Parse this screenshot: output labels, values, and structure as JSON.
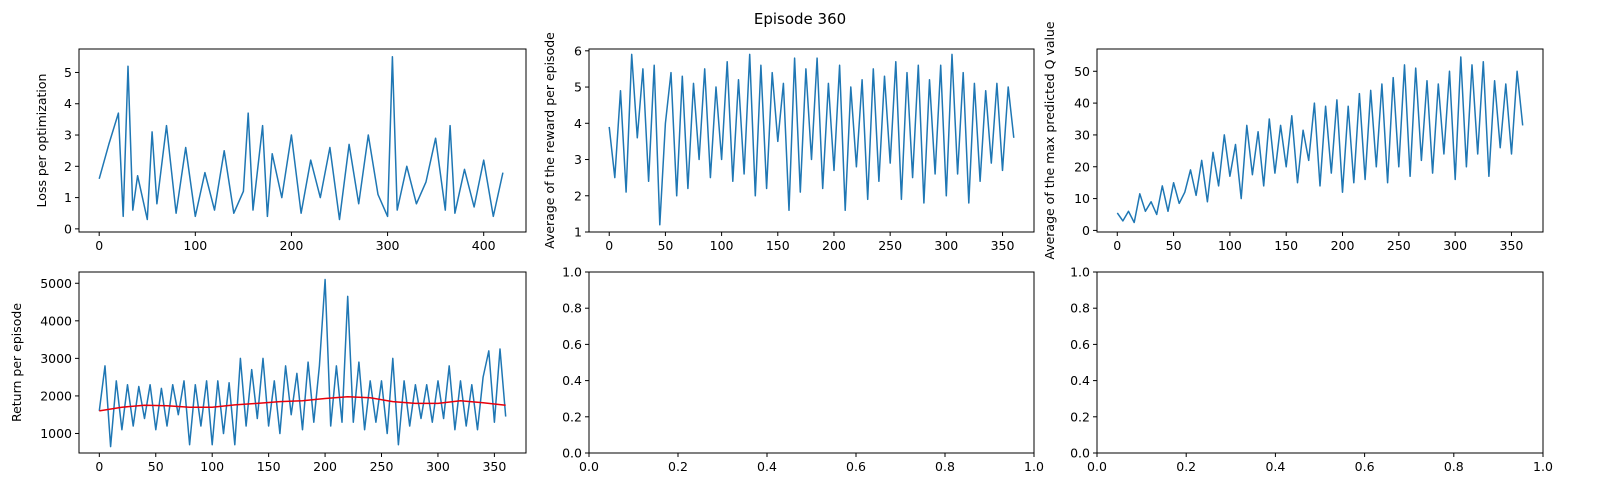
{
  "figure": {
    "title": "Episode 360"
  },
  "colors": {
    "line": "#1f77b4",
    "moving_average": "#e8000b",
    "axes": "#000000",
    "background": "#ffffff"
  },
  "chart_data": [
    {
      "type": "line",
      "title": "",
      "xlabel": "",
      "ylabel": "Loss per optimization",
      "xlim": [
        -21,
        444
      ],
      "ylim": [
        -0.1,
        5.75
      ],
      "xticks": [
        0,
        100,
        200,
        300,
        400
      ],
      "yticks": [
        0,
        1,
        2,
        3,
        4,
        5
      ],
      "grid": false,
      "series": [
        {
          "x": [
            0,
            10,
            20,
            25,
            30,
            35,
            40,
            50,
            55,
            60,
            70,
            80,
            90,
            100,
            110,
            120,
            130,
            140,
            150,
            155,
            160,
            170,
            175,
            180,
            190,
            200,
            210,
            220,
            230,
            240,
            250,
            260,
            270,
            280,
            290,
            300,
            305,
            310,
            320,
            330,
            340,
            350,
            360,
            365,
            370,
            380,
            390,
            400,
            410,
            420
          ],
          "y": [
            1.6,
            2.7,
            3.7,
            0.4,
            5.2,
            0.6,
            1.7,
            0.3,
            3.1,
            0.8,
            3.3,
            0.5,
            2.6,
            0.4,
            1.8,
            0.6,
            2.5,
            0.5,
            1.2,
            3.7,
            0.6,
            3.3,
            0.4,
            2.4,
            1.0,
            3.0,
            0.5,
            2.2,
            1.0,
            2.6,
            0.3,
            2.7,
            0.8,
            3.0,
            1.1,
            0.4,
            5.5,
            0.6,
            2.0,
            0.8,
            1.5,
            2.9,
            0.6,
            3.3,
            0.5,
            1.9,
            0.7,
            2.2,
            0.4,
            1.8
          ]
        }
      ]
    },
    {
      "type": "line",
      "title": "",
      "xlabel": "",
      "ylabel": "Average of the reward per episode",
      "xlim": [
        -18,
        378
      ],
      "ylim": [
        1.0,
        6.05
      ],
      "xticks": [
        0,
        50,
        100,
        150,
        200,
        250,
        300,
        350
      ],
      "yticks": [
        1,
        2,
        3,
        4,
        5,
        6
      ],
      "grid": false,
      "series": [
        {
          "x": [
            0,
            5,
            10,
            15,
            20,
            25,
            30,
            35,
            40,
            45,
            50,
            55,
            60,
            65,
            70,
            75,
            80,
            85,
            90,
            95,
            100,
            105,
            110,
            115,
            120,
            125,
            130,
            135,
            140,
            145,
            150,
            155,
            160,
            165,
            170,
            175,
            180,
            185,
            190,
            195,
            200,
            205,
            210,
            215,
            220,
            225,
            230,
            235,
            240,
            245,
            250,
            255,
            260,
            265,
            270,
            275,
            280,
            285,
            290,
            295,
            300,
            305,
            310,
            315,
            320,
            325,
            330,
            335,
            340,
            345,
            350,
            355,
            360
          ],
          "y": [
            3.9,
            2.5,
            4.9,
            2.1,
            5.9,
            3.6,
            5.5,
            2.4,
            5.6,
            1.2,
            4.0,
            5.4,
            2.0,
            5.3,
            2.2,
            5.1,
            3.0,
            5.5,
            2.5,
            5.0,
            3.0,
            5.7,
            2.4,
            5.2,
            2.6,
            5.9,
            2.0,
            5.6,
            2.2,
            5.4,
            3.5,
            5.1,
            1.6,
            5.8,
            2.1,
            5.5,
            3.0,
            5.8,
            2.2,
            5.1,
            2.7,
            5.6,
            1.6,
            5.0,
            2.8,
            5.2,
            1.9,
            5.5,
            2.4,
            5.3,
            2.9,
            5.7,
            1.9,
            5.4,
            2.5,
            5.6,
            1.8,
            5.2,
            2.6,
            5.6,
            2.0,
            5.9,
            2.6,
            5.4,
            1.8,
            5.1,
            2.4,
            4.9,
            2.9,
            5.1,
            2.7,
            5.0,
            3.6
          ]
        }
      ]
    },
    {
      "type": "line",
      "title": "",
      "xlabel": "",
      "ylabel": "Average of the max predicted Q value",
      "xlim": [
        -18,
        378
      ],
      "ylim": [
        -0.5,
        57
      ],
      "xticks": [
        0,
        50,
        100,
        150,
        200,
        250,
        300,
        350
      ],
      "yticks": [
        0,
        10,
        20,
        30,
        40,
        50
      ],
      "grid": false,
      "series": [
        {
          "x": [
            0,
            5,
            10,
            15,
            20,
            25,
            30,
            35,
            40,
            45,
            50,
            55,
            60,
            65,
            70,
            75,
            80,
            85,
            90,
            95,
            100,
            105,
            110,
            115,
            120,
            125,
            130,
            135,
            140,
            145,
            150,
            155,
            160,
            165,
            170,
            175,
            180,
            185,
            190,
            195,
            200,
            205,
            210,
            215,
            220,
            225,
            230,
            235,
            240,
            245,
            250,
            255,
            260,
            265,
            270,
            275,
            280,
            285,
            290,
            295,
            300,
            305,
            310,
            315,
            320,
            325,
            330,
            335,
            340,
            345,
            350,
            355,
            360
          ],
          "y": [
            5.5,
            3.0,
            6.0,
            2.5,
            11.5,
            6.0,
            9.0,
            5.0,
            14.0,
            6.0,
            15.0,
            8.5,
            12.0,
            19.0,
            11.0,
            22.0,
            9.0,
            24.5,
            14.0,
            30.0,
            17.0,
            27.0,
            10.0,
            33.0,
            17.5,
            31.0,
            14.0,
            35.0,
            18.0,
            33.0,
            20.0,
            36.0,
            15.0,
            31.5,
            22.0,
            40.0,
            14.0,
            39.0,
            18.0,
            41.0,
            12.0,
            39.0,
            15.0,
            43.0,
            16.0,
            44.0,
            20.0,
            46.0,
            15.0,
            48.0,
            20.0,
            52.0,
            17.0,
            51.0,
            22.0,
            47.0,
            18.0,
            46.0,
            24.0,
            50.0,
            16.0,
            54.5,
            20.0,
            52.0,
            24.0,
            53.0,
            17.0,
            47.0,
            26.0,
            46.0,
            24.0,
            50.0,
            33.0
          ]
        }
      ]
    },
    {
      "type": "line",
      "title": "",
      "xlabel": "",
      "ylabel": "Return per episode",
      "xlim": [
        -18,
        378
      ],
      "ylim": [
        480,
        5300
      ],
      "xticks": [
        0,
        50,
        100,
        150,
        200,
        250,
        300,
        350
      ],
      "yticks": [
        1000,
        2000,
        3000,
        4000,
        5000
      ],
      "grid": false,
      "series": [
        {
          "x": [
            0,
            5,
            10,
            15,
            20,
            25,
            30,
            35,
            40,
            45,
            50,
            55,
            60,
            65,
            70,
            75,
            80,
            85,
            90,
            95,
            100,
            105,
            110,
            115,
            120,
            125,
            130,
            135,
            140,
            145,
            150,
            155,
            160,
            165,
            170,
            175,
            180,
            185,
            190,
            195,
            200,
            205,
            210,
            215,
            220,
            225,
            230,
            235,
            240,
            245,
            250,
            255,
            260,
            265,
            270,
            275,
            280,
            285,
            290,
            295,
            300,
            305,
            310,
            315,
            320,
            325,
            330,
            335,
            340,
            345,
            350,
            355,
            360
          ],
          "y": [
            1600,
            2800,
            650,
            2400,
            1100,
            2300,
            1200,
            2250,
            1400,
            2300,
            1100,
            2200,
            1200,
            2300,
            1500,
            2400,
            700,
            2300,
            1200,
            2400,
            700,
            2400,
            1000,
            2350,
            700,
            3000,
            1200,
            2700,
            1400,
            3000,
            1200,
            2400,
            1000,
            2800,
            1500,
            2600,
            1100,
            2900,
            1300,
            2800,
            5100,
            1200,
            2800,
            1300,
            4650,
            1300,
            2900,
            1100,
            2400,
            1300,
            2400,
            1000,
            3000,
            700,
            2400,
            1200,
            2300,
            1400,
            2300,
            1300,
            2400,
            1400,
            2800,
            1100,
            2400,
            1200,
            2300,
            1100,
            2500,
            3200,
            1300,
            3250,
            1450
          ]
        },
        {
          "x": [
            0,
            20,
            40,
            60,
            80,
            100,
            120,
            140,
            160,
            180,
            200,
            220,
            240,
            260,
            280,
            300,
            320,
            340,
            360
          ],
          "y": [
            1600,
            1700,
            1750,
            1740,
            1700,
            1700,
            1760,
            1800,
            1850,
            1870,
            1930,
            1980,
            1950,
            1850,
            1800,
            1800,
            1870,
            1820,
            1750
          ]
        }
      ]
    },
    {
      "type": "line",
      "title": "",
      "xlabel": "",
      "ylabel": "",
      "xlim": [
        0,
        1
      ],
      "ylim": [
        0,
        1
      ],
      "xticks": [
        0.0,
        0.2,
        0.4,
        0.6,
        0.8,
        1.0
      ],
      "yticks": [
        0.0,
        0.2,
        0.4,
        0.6,
        0.8,
        1.0
      ],
      "grid": false,
      "series": []
    },
    {
      "type": "line",
      "title": "",
      "xlabel": "",
      "ylabel": "",
      "xlim": [
        0,
        1
      ],
      "ylim": [
        0,
        1
      ],
      "xticks": [
        0.0,
        0.2,
        0.4,
        0.6,
        0.8,
        1.0
      ],
      "yticks": [
        0.0,
        0.2,
        0.4,
        0.6,
        0.8,
        1.0
      ],
      "grid": false,
      "series": []
    }
  ]
}
